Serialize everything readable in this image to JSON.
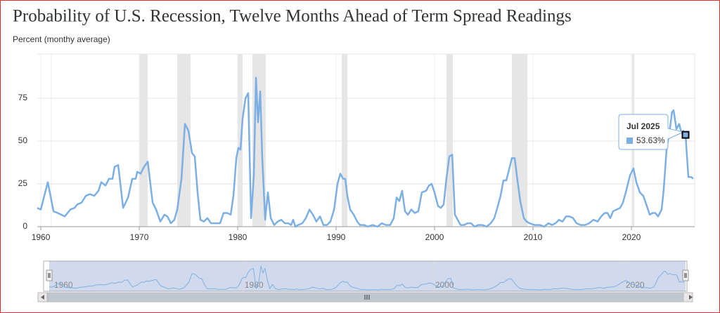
{
  "chart_data": {
    "type": "line",
    "title": "Probability of U.S. Recession, Twelve Months Ahead of Term Spread Readings",
    "y_axis_label": "Percent (monthy average)",
    "x": [
      1959.64,
      1960.0,
      1960.71,
      1961.29,
      1961.71,
      1962.07,
      1962.43,
      1963.0,
      1963.43,
      1963.71,
      1964.14,
      1964.57,
      1965.0,
      1965.43,
      1965.86,
      1966.14,
      1966.57,
      1966.93,
      1967.29,
      1967.5,
      1967.86,
      1968.36,
      1968.86,
      1969.29,
      1969.64,
      1969.79,
      1970.14,
      1970.5,
      1970.86,
      1971.36,
      1971.71,
      1972.14,
      1972.57,
      1972.86,
      1973.21,
      1973.57,
      1973.86,
      1974.29,
      1974.64,
      1975.0,
      1975.36,
      1975.64,
      1975.93,
      1976.21,
      1976.57,
      1976.93,
      1977.29,
      1977.79,
      1978.21,
      1978.57,
      1978.93,
      1979.29,
      1979.57,
      1979.86,
      1980.07,
      1980.29,
      1980.5,
      1980.79,
      1981.07,
      1981.36,
      1981.64,
      1981.86,
      1982.07,
      1982.29,
      1982.5,
      1982.79,
      1983.07,
      1983.36,
      1983.71,
      1984.07,
      1984.43,
      1984.79,
      1985.14,
      1985.43,
      1985.64,
      1985.86,
      1986.14,
      1986.57,
      1986.93,
      1987.29,
      1987.64,
      1988.0,
      1988.36,
      1988.71,
      1989.07,
      1989.43,
      1989.79,
      1990.14,
      1990.43,
      1990.71,
      1990.93,
      1991.14,
      1991.43,
      1991.79,
      1992.14,
      1992.43,
      1992.86,
      1993.21,
      1993.71,
      1994.21,
      1994.64,
      1995.07,
      1995.5,
      1995.86,
      1996.14,
      1996.43,
      1996.71,
      1997.0,
      1997.29,
      1997.64,
      1998.0,
      1998.36,
      1998.71,
      1999.14,
      1999.43,
      1999.71,
      2000.0,
      2000.36,
      2000.64,
      2000.93,
      2001.21,
      2001.5,
      2001.79,
      2002.07,
      2002.36,
      2002.64,
      2003.0,
      2003.36,
      2003.71,
      2004.07,
      2004.43,
      2004.86,
      2005.29,
      2005.71,
      2006.07,
      2006.43,
      2006.71,
      2007.0,
      2007.29,
      2007.64,
      2007.86,
      2008.14,
      2008.43,
      2008.71,
      2009.07,
      2009.36,
      2009.64,
      2010.14,
      2010.71,
      2011.14,
      2011.57,
      2011.93,
      2012.29,
      2012.64,
      2013.0,
      2013.36,
      2013.71,
      2014.07,
      2014.43,
      2014.86,
      2015.29,
      2015.71,
      2016.14,
      2016.57,
      2016.93,
      2017.29,
      2017.57,
      2017.86,
      2018.14,
      2018.5,
      2018.86,
      2019.14,
      2019.43,
      2019.86,
      2020.21,
      2020.5,
      2020.86,
      2021.21,
      2021.57,
      2021.86,
      2022.14,
      2022.43,
      2022.71,
      2023.07,
      2023.29,
      2023.57,
      2023.86,
      2024.14,
      2024.29,
      2024.57,
      2024.86,
      2025.07,
      2025.29,
      2025.5,
      2025.79,
      2026.07,
      2026.29
    ],
    "series": [
      {
        "color": "#7cb0e4",
        "values": [
          11,
          10,
          26,
          9,
          8,
          7,
          6,
          10,
          11,
          13,
          14,
          18,
          19,
          18,
          21,
          26,
          24,
          28,
          28,
          35,
          36,
          11,
          17,
          28,
          28,
          32,
          31,
          35,
          38,
          14,
          10,
          3,
          7,
          6,
          2,
          4,
          10,
          28,
          60,
          56,
          43,
          41,
          20,
          4,
          3,
          5,
          2,
          2,
          2,
          8,
          8,
          7,
          18,
          40,
          46,
          45,
          63,
          75,
          78,
          5,
          30,
          87,
          61,
          79,
          40,
          4,
          20,
          5,
          1,
          3,
          4,
          2,
          2,
          1,
          4,
          0,
          1,
          2,
          5,
          10,
          7,
          3,
          6,
          1,
          1,
          3,
          10,
          25,
          31,
          28,
          28,
          18,
          10,
          7,
          3,
          1,
          1,
          0,
          1,
          0,
          2,
          1,
          1,
          5,
          17,
          15,
          21,
          9,
          7,
          10,
          8,
          9,
          20,
          21,
          24,
          25,
          20,
          12,
          11,
          13,
          28,
          41,
          42,
          7,
          4,
          1,
          1,
          2,
          2,
          0,
          1,
          1,
          0,
          2,
          5,
          12,
          18,
          27,
          27,
          35,
          40,
          40,
          27,
          15,
          5,
          3,
          2,
          1,
          1,
          0,
          2,
          1,
          2,
          4,
          3,
          6,
          6,
          5,
          2,
          1,
          1,
          2,
          4,
          3,
          6,
          8,
          8,
          5,
          9,
          10,
          11,
          14,
          20,
          30,
          34,
          26,
          20,
          18,
          12,
          7,
          8,
          8,
          6,
          10,
          22,
          45,
          55,
          67,
          68,
          57,
          60,
          55,
          56,
          53.63,
          29,
          29,
          28
        ]
      }
    ],
    "xlim": [
      1959.64,
      2026.43
    ],
    "xticks": [
      1960,
      1970,
      1980,
      1990,
      2000,
      2010,
      2020
    ],
    "ylim": [
      0,
      100
    ],
    "yticks": [
      0,
      25,
      50,
      75
    ],
    "grid": true,
    "recessions": [
      [
        1970.0,
        1970.86
      ],
      [
        1973.86,
        1975.21
      ],
      [
        1980.0,
        1980.5
      ],
      [
        1981.5,
        1982.86
      ],
      [
        1990.57,
        1991.14
      ],
      [
        2001.21,
        2001.86
      ],
      [
        2007.86,
        2009.43
      ],
      [
        2020.07,
        2020.29
      ]
    ],
    "tooltip": {
      "x": 2025.5,
      "label": "Jul 2025",
      "value": 53.63,
      "value_label": "53.63%"
    },
    "navigator_ticks": [
      1960,
      1980,
      2000,
      2020
    ]
  }
}
